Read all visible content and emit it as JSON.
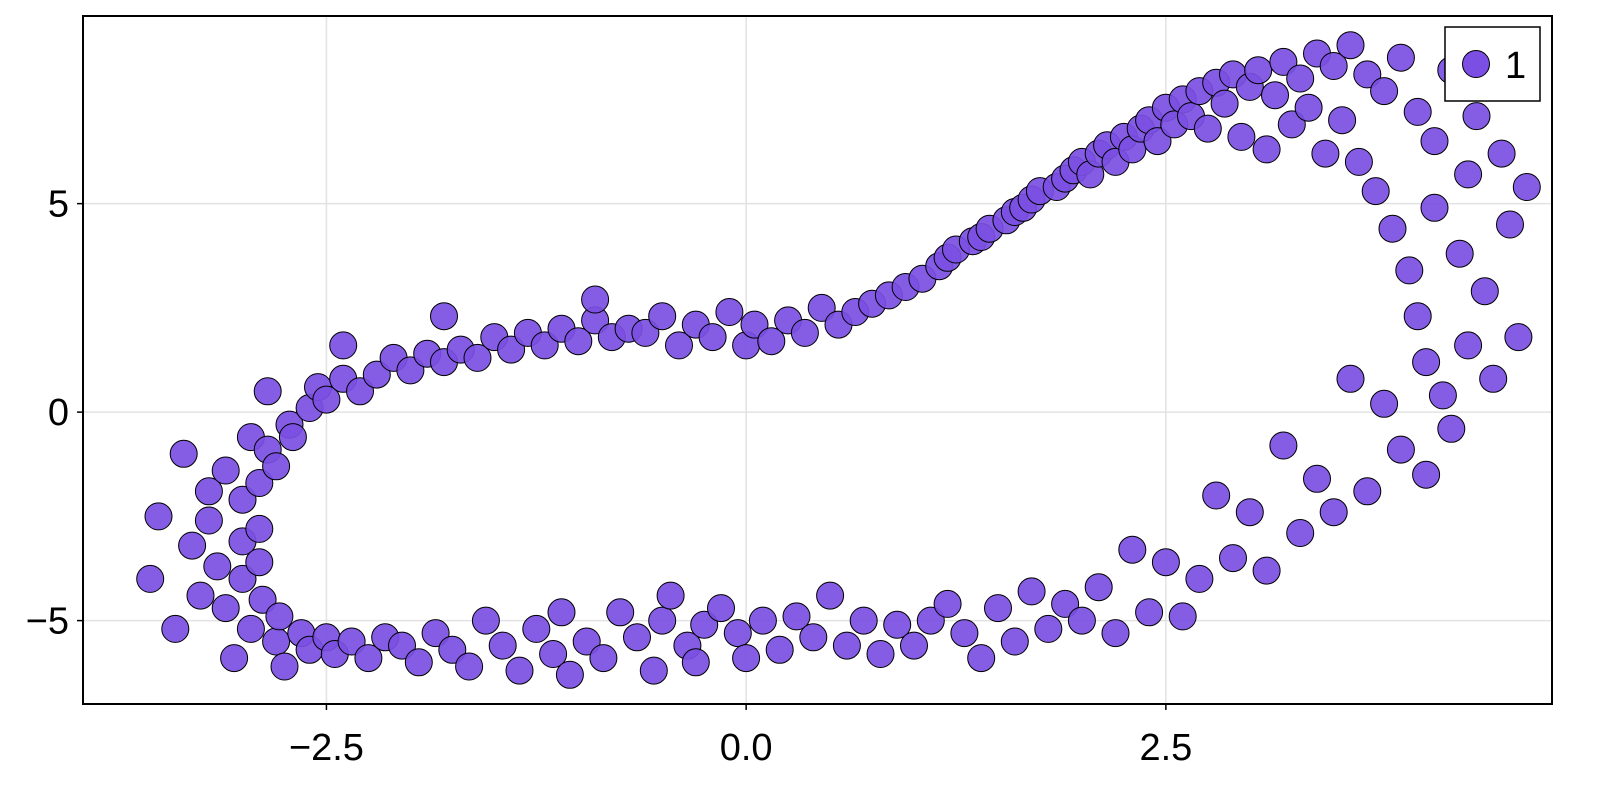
{
  "chart_data": {
    "type": "scatter",
    "title": "",
    "xlabel": "",
    "ylabel": "",
    "xlim": [
      -3.95,
      4.8
    ],
    "ylim": [
      -7.0,
      9.5
    ],
    "xticks": [
      -2.5,
      0.0,
      2.5
    ],
    "xtick_labels": [
      "−2.5",
      "0.0",
      "2.5"
    ],
    "yticks": [
      -5,
      0,
      5
    ],
    "ytick_labels": [
      "−5",
      "0",
      "5"
    ],
    "grid": true,
    "legend_position": "top-right",
    "colors": {
      "marker": "#7b4fe3",
      "edge": "#000000",
      "grid": "#e2e2e2",
      "frame": "#000000"
    },
    "series": [
      {
        "name": "1",
        "points": [
          [
            -3.55,
            -4.0
          ],
          [
            -3.5,
            -2.5
          ],
          [
            -3.4,
            -5.2
          ],
          [
            -3.35,
            -1.0
          ],
          [
            -3.3,
            -3.2
          ],
          [
            -3.25,
            -4.4
          ],
          [
            -3.2,
            -1.9
          ],
          [
            -3.2,
            -2.6
          ],
          [
            -3.15,
            -3.7
          ],
          [
            -3.1,
            -1.4
          ],
          [
            -3.1,
            -4.7
          ],
          [
            -3.05,
            -5.9
          ],
          [
            -3.0,
            -2.1
          ],
          [
            -3.0,
            -3.1
          ],
          [
            -3.0,
            -4.0
          ],
          [
            -2.95,
            -0.6
          ],
          [
            -2.95,
            -5.2
          ],
          [
            -2.9,
            -1.7
          ],
          [
            -2.9,
            -2.8
          ],
          [
            -2.9,
            -3.6
          ],
          [
            -2.88,
            -4.5
          ],
          [
            -2.85,
            0.5
          ],
          [
            -2.85,
            -0.9
          ],
          [
            -2.8,
            -1.3
          ],
          [
            -2.8,
            -5.5
          ],
          [
            -2.78,
            -4.9
          ],
          [
            -2.75,
            -6.1
          ],
          [
            -2.72,
            -0.3
          ],
          [
            -2.7,
            -0.6
          ],
          [
            -2.65,
            -5.3
          ],
          [
            -2.6,
            0.1
          ],
          [
            -2.6,
            -5.7
          ],
          [
            -2.55,
            0.6
          ],
          [
            -2.5,
            0.3
          ],
          [
            -2.5,
            -5.4
          ],
          [
            -2.45,
            -5.8
          ],
          [
            -2.4,
            0.8
          ],
          [
            -2.4,
            1.6
          ],
          [
            -2.35,
            -5.5
          ],
          [
            -2.3,
            0.5
          ],
          [
            -2.25,
            -5.9
          ],
          [
            -2.2,
            0.9
          ],
          [
            -2.15,
            -5.4
          ],
          [
            -2.1,
            1.3
          ],
          [
            -2.05,
            -5.6
          ],
          [
            -2.0,
            1.0
          ],
          [
            -1.95,
            -6.0
          ],
          [
            -1.9,
            1.4
          ],
          [
            -1.85,
            -5.3
          ],
          [
            -1.8,
            1.2
          ],
          [
            -1.8,
            2.3
          ],
          [
            -1.75,
            -5.7
          ],
          [
            -1.7,
            1.5
          ],
          [
            -1.65,
            -6.1
          ],
          [
            -1.6,
            1.3
          ],
          [
            -1.55,
            -5.0
          ],
          [
            -1.5,
            1.8
          ],
          [
            -1.45,
            -5.6
          ],
          [
            -1.4,
            1.5
          ],
          [
            -1.35,
            -6.2
          ],
          [
            -1.3,
            1.9
          ],
          [
            -1.25,
            -5.2
          ],
          [
            -1.2,
            1.6
          ],
          [
            -1.15,
            -5.8
          ],
          [
            -1.1,
            2.0
          ],
          [
            -1.1,
            -4.8
          ],
          [
            -1.05,
            -6.3
          ],
          [
            -1.0,
            1.7
          ],
          [
            -0.95,
            -5.5
          ],
          [
            -0.9,
            2.2
          ],
          [
            -0.9,
            2.7
          ],
          [
            -0.85,
            -5.9
          ],
          [
            -0.8,
            1.8
          ],
          [
            -0.75,
            -4.8
          ],
          [
            -0.7,
            2.0
          ],
          [
            -0.65,
            -5.4
          ],
          [
            -0.6,
            1.9
          ],
          [
            -0.55,
            -6.2
          ],
          [
            -0.5,
            2.3
          ],
          [
            -0.5,
            -5.0
          ],
          [
            -0.45,
            -4.4
          ],
          [
            -0.4,
            1.6
          ],
          [
            -0.35,
            -5.6
          ],
          [
            -0.3,
            2.1
          ],
          [
            -0.3,
            -6.0
          ],
          [
            -0.25,
            -5.1
          ],
          [
            -0.2,
            1.8
          ],
          [
            -0.15,
            -4.7
          ],
          [
            -0.1,
            2.4
          ],
          [
            -0.05,
            -5.3
          ],
          [
            0.0,
            1.6
          ],
          [
            0.0,
            -5.9
          ],
          [
            0.05,
            2.1
          ],
          [
            0.1,
            -5.0
          ],
          [
            0.15,
            1.7
          ],
          [
            0.2,
            -5.7
          ],
          [
            0.25,
            2.2
          ],
          [
            0.3,
            -4.9
          ],
          [
            0.35,
            1.9
          ],
          [
            0.4,
            -5.4
          ],
          [
            0.45,
            2.5
          ],
          [
            0.5,
            -4.4
          ],
          [
            0.55,
            2.1
          ],
          [
            0.6,
            -5.6
          ],
          [
            0.65,
            2.4
          ],
          [
            0.7,
            -5.0
          ],
          [
            0.75,
            2.6
          ],
          [
            0.8,
            -5.8
          ],
          [
            0.85,
            2.8
          ],
          [
            0.9,
            -5.1
          ],
          [
            0.95,
            3.0
          ],
          [
            1.0,
            -5.6
          ],
          [
            1.05,
            3.2
          ],
          [
            1.1,
            -5.0
          ],
          [
            1.15,
            3.5
          ],
          [
            1.2,
            3.7
          ],
          [
            1.2,
            -4.6
          ],
          [
            1.25,
            3.9
          ],
          [
            1.3,
            -5.3
          ],
          [
            1.35,
            4.1
          ],
          [
            1.4,
            4.2
          ],
          [
            1.4,
            -5.9
          ],
          [
            1.45,
            4.4
          ],
          [
            1.5,
            -4.7
          ],
          [
            1.55,
            4.6
          ],
          [
            1.6,
            4.8
          ],
          [
            1.6,
            -5.5
          ],
          [
            1.65,
            4.9
          ],
          [
            1.7,
            5.1
          ],
          [
            1.7,
            -4.3
          ],
          [
            1.75,
            5.3
          ],
          [
            1.8,
            -5.2
          ],
          [
            1.85,
            5.4
          ],
          [
            1.9,
            5.6
          ],
          [
            1.9,
            -4.6
          ],
          [
            1.95,
            5.8
          ],
          [
            2.0,
            6.0
          ],
          [
            2.0,
            -5.0
          ],
          [
            2.05,
            5.7
          ],
          [
            2.1,
            6.2
          ],
          [
            2.1,
            -4.2
          ],
          [
            2.15,
            6.4
          ],
          [
            2.2,
            6.0
          ],
          [
            2.2,
            -5.3
          ],
          [
            2.25,
            6.6
          ],
          [
            2.3,
            6.3
          ],
          [
            2.3,
            -3.3
          ],
          [
            2.35,
            6.8
          ],
          [
            2.4,
            7.0
          ],
          [
            2.4,
            -4.8
          ],
          [
            2.45,
            6.5
          ],
          [
            2.5,
            7.3
          ],
          [
            2.5,
            -3.6
          ],
          [
            2.55,
            6.9
          ],
          [
            2.6,
            7.5
          ],
          [
            2.6,
            -4.9
          ],
          [
            2.65,
            7.1
          ],
          [
            2.7,
            7.7
          ],
          [
            2.7,
            -4.0
          ],
          [
            2.75,
            6.8
          ],
          [
            2.8,
            7.9
          ],
          [
            2.8,
            -2.0
          ],
          [
            2.85,
            7.4
          ],
          [
            2.9,
            8.1
          ],
          [
            2.9,
            -3.5
          ],
          [
            2.95,
            6.6
          ],
          [
            3.0,
            7.8
          ],
          [
            3.0,
            -2.4
          ],
          [
            3.05,
            8.2
          ],
          [
            3.1,
            6.3
          ],
          [
            3.1,
            -3.8
          ],
          [
            3.15,
            7.6
          ],
          [
            3.2,
            8.4
          ],
          [
            3.2,
            -0.8
          ],
          [
            3.25,
            6.9
          ],
          [
            3.3,
            8.0
          ],
          [
            3.3,
            -2.9
          ],
          [
            3.35,
            7.3
          ],
          [
            3.4,
            8.6
          ],
          [
            3.4,
            -1.6
          ],
          [
            3.45,
            6.2
          ],
          [
            3.5,
            8.3
          ],
          [
            3.5,
            -2.4
          ],
          [
            3.55,
            7.0
          ],
          [
            3.6,
            8.8
          ],
          [
            3.6,
            0.8
          ],
          [
            3.65,
            6.0
          ],
          [
            3.7,
            8.1
          ],
          [
            3.7,
            -1.9
          ],
          [
            3.75,
            5.3
          ],
          [
            3.8,
            7.7
          ],
          [
            3.8,
            0.2
          ],
          [
            3.85,
            4.4
          ],
          [
            3.9,
            8.5
          ],
          [
            3.9,
            -0.9
          ],
          [
            3.95,
            3.4
          ],
          [
            4.0,
            7.2
          ],
          [
            4.0,
            2.3
          ],
          [
            4.05,
            1.2
          ],
          [
            4.05,
            -1.5
          ],
          [
            4.1,
            6.5
          ],
          [
            4.1,
            4.9
          ],
          [
            4.15,
            0.4
          ],
          [
            4.2,
            8.2
          ],
          [
            4.2,
            -0.4
          ],
          [
            4.25,
            3.8
          ],
          [
            4.3,
            5.7
          ],
          [
            4.3,
            1.6
          ],
          [
            4.35,
            7.1
          ],
          [
            4.4,
            2.9
          ],
          [
            4.45,
            0.8
          ],
          [
            4.5,
            6.2
          ],
          [
            4.55,
            4.5
          ],
          [
            4.6,
            1.8
          ],
          [
            4.65,
            5.4
          ]
        ]
      }
    ]
  }
}
